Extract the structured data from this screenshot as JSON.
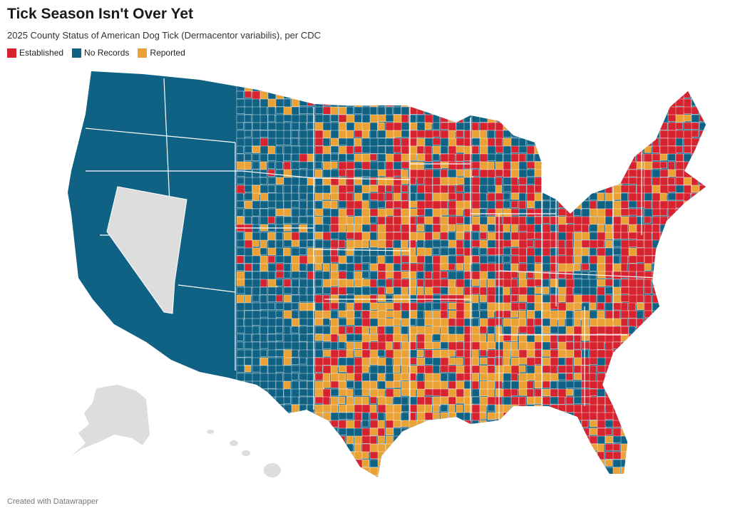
{
  "title": "Tick Season Isn't Over Yet",
  "subtitle": "2025 County Status of American Dog Tick (Dermacentor variabilis), per CDC",
  "legend": [
    {
      "label": "Established",
      "color": "#d7232f"
    },
    {
      "label": "No Records",
      "color": "#0f6284"
    },
    {
      "label": "Reported",
      "color": "#eaa236"
    }
  ],
  "no_data_color": "#dddddd",
  "footer": "Created with Datawrapper"
}
